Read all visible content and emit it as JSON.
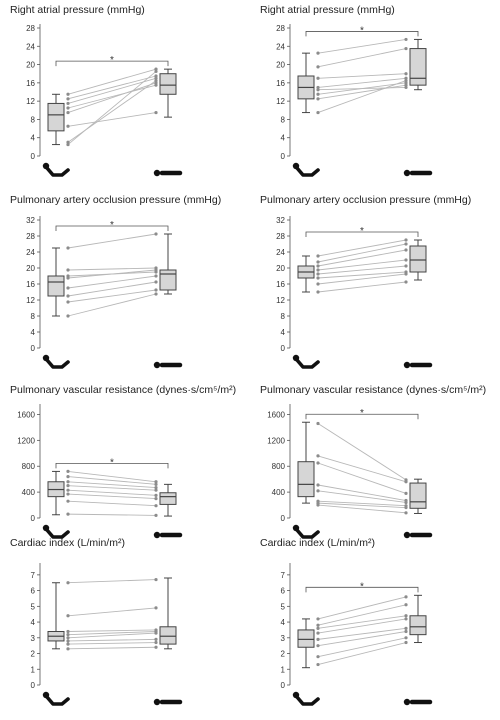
{
  "charts": [
    {
      "title": "Right atrial pressure (mmHg)",
      "y_ticks": [
        0,
        4,
        8,
        12,
        16,
        20,
        24,
        28
      ],
      "ylim": [
        0,
        28
      ],
      "significance": "*",
      "chart_data": {
        "type": "box",
        "categories": [
          "semi-recumbent",
          "supine"
        ],
        "box": [
          {
            "min": 2.5,
            "q1": 5.5,
            "median": 9,
            "q3": 11.5,
            "max": 13.5
          },
          {
            "min": 8.5,
            "q1": 13.5,
            "median": 15.5,
            "q3": 18,
            "max": 19
          }
        ],
        "paired": [
          [
            13.5,
            19
          ],
          [
            12.5,
            17.5
          ],
          [
            11.5,
            17
          ],
          [
            10.5,
            15.5
          ],
          [
            9.5,
            16
          ],
          [
            6.5,
            9.5
          ],
          [
            2.5,
            18.5
          ],
          [
            3,
            16.5
          ]
        ]
      }
    },
    {
      "title": "Right atrial pressure (mmHg)",
      "y_ticks": [
        0,
        4,
        8,
        12,
        16,
        20,
        24,
        28
      ],
      "ylim": [
        0,
        28
      ],
      "significance": "*",
      "chart_data": {
        "type": "box",
        "categories": [
          "semi-recumbent",
          "supine"
        ],
        "box": [
          {
            "min": 9.5,
            "q1": 12.5,
            "median": 15,
            "q3": 17.5,
            "max": 22.5
          },
          {
            "min": 14.5,
            "q1": 15.5,
            "median": 17,
            "q3": 23.5,
            "max": 25.5
          }
        ],
        "paired": [
          [
            22.5,
            25.5
          ],
          [
            19.5,
            23.5
          ],
          [
            17,
            18
          ],
          [
            15,
            17
          ],
          [
            14.5,
            15
          ],
          [
            13.5,
            16
          ],
          [
            12.5,
            15.5
          ],
          [
            9.5,
            16.5
          ]
        ]
      }
    },
    {
      "title": "Pulmonary artery occlusion pressure (mmHg)",
      "y_ticks": [
        0,
        4,
        8,
        12,
        16,
        20,
        24,
        28,
        32
      ],
      "ylim": [
        0,
        32
      ],
      "significance": "*",
      "chart_data": {
        "type": "box",
        "categories": [
          "semi-recumbent",
          "supine"
        ],
        "box": [
          {
            "min": 8,
            "q1": 13,
            "median": 16.5,
            "q3": 18,
            "max": 25
          },
          {
            "min": 13.5,
            "q1": 14.5,
            "median": 18.5,
            "q3": 19.5,
            "max": 28.5
          }
        ],
        "paired": [
          [
            25,
            28.5
          ],
          [
            19.5,
            20
          ],
          [
            18,
            19
          ],
          [
            17.5,
            19.5
          ],
          [
            15,
            18
          ],
          [
            13,
            16.5
          ],
          [
            11.5,
            14.5
          ],
          [
            8,
            13.5
          ]
        ]
      }
    },
    {
      "title": "Pulmonary artery occlusion pressure (mmHg)",
      "y_ticks": [
        0,
        4,
        8,
        12,
        16,
        20,
        24,
        28,
        32
      ],
      "ylim": [
        0,
        32
      ],
      "significance": "*",
      "chart_data": {
        "type": "box",
        "categories": [
          "semi-recumbent",
          "supine"
        ],
        "box": [
          {
            "min": 14,
            "q1": 17.5,
            "median": 19,
            "q3": 20.5,
            "max": 23
          },
          {
            "min": 17,
            "q1": 19,
            "median": 22,
            "q3": 25.5,
            "max": 27
          }
        ],
        "paired": [
          [
            23,
            27
          ],
          [
            21.5,
            26
          ],
          [
            20.5,
            24.5
          ],
          [
            19.5,
            22
          ],
          [
            18.5,
            20.5
          ],
          [
            17.5,
            19
          ],
          [
            16,
            18.5
          ],
          [
            14,
            16.5
          ]
        ]
      }
    },
    {
      "title": "Pulmonary vascular resistance (dynes·s/cm⁵/m²)",
      "y_ticks": [
        0,
        400,
        800,
        1200,
        1600
      ],
      "ylim": [
        0,
        1700
      ],
      "significance": "*",
      "chart_data": {
        "type": "box",
        "categories": [
          "semi-recumbent",
          "supine"
        ],
        "box": [
          {
            "min": 50,
            "q1": 330,
            "median": 440,
            "q3": 560,
            "max": 720
          },
          {
            "min": 30,
            "q1": 210,
            "median": 330,
            "q3": 390,
            "max": 520
          }
        ],
        "paired": [
          [
            720,
            560
          ],
          [
            640,
            520
          ],
          [
            560,
            470
          ],
          [
            500,
            430
          ],
          [
            430,
            350
          ],
          [
            370,
            300
          ],
          [
            260,
            190
          ],
          [
            60,
            40
          ]
        ]
      }
    },
    {
      "title": "Pulmonary vascular resistance (dynes·s/cm⁵/m²)",
      "y_ticks": [
        0,
        400,
        800,
        1200,
        1600
      ],
      "ylim": [
        0,
        1700
      ],
      "significance": "*",
      "chart_data": {
        "type": "box",
        "categories": [
          "semi-recumbent",
          "supine"
        ],
        "box": [
          {
            "min": 230,
            "q1": 330,
            "median": 520,
            "q3": 870,
            "max": 1480
          },
          {
            "min": 70,
            "q1": 150,
            "median": 250,
            "q3": 540,
            "max": 600
          }
        ],
        "paired": [
          [
            1460,
            590
          ],
          [
            960,
            560
          ],
          [
            850,
            380
          ],
          [
            510,
            270
          ],
          [
            420,
            240
          ],
          [
            260,
            190
          ],
          [
            230,
            160
          ],
          [
            200,
            80
          ]
        ]
      }
    },
    {
      "title": "Cardiac index (L/min/m²)",
      "y_ticks": [
        0,
        1,
        2,
        3,
        4,
        5,
        6,
        7
      ],
      "ylim": [
        0,
        7.5
      ],
      "significance": "",
      "chart_data": {
        "type": "box",
        "categories": [
          "semi-recumbent",
          "supine"
        ],
        "box": [
          {
            "min": 2.3,
            "q1": 2.8,
            "median": 3.1,
            "q3": 3.4,
            "max": 6.5
          },
          {
            "min": 2.3,
            "q1": 2.6,
            "median": 3.1,
            "q3": 3.7,
            "max": 6.8
          }
        ],
        "paired": [
          [
            6.5,
            6.7
          ],
          [
            4.4,
            4.9
          ],
          [
            3.4,
            3.5
          ],
          [
            3.2,
            3.4
          ],
          [
            3.0,
            3.3
          ],
          [
            2.8,
            2.9
          ],
          [
            2.6,
            2.7
          ],
          [
            2.3,
            2.4
          ]
        ]
      }
    },
    {
      "title": "Cardiac index (L/min/m²)",
      "y_ticks": [
        0,
        1,
        2,
        3,
        4,
        5,
        6,
        7
      ],
      "ylim": [
        0,
        7.5
      ],
      "significance": "*",
      "chart_data": {
        "type": "box",
        "categories": [
          "semi-recumbent",
          "supine"
        ],
        "box": [
          {
            "min": 1.1,
            "q1": 2.4,
            "median": 2.9,
            "q3": 3.5,
            "max": 4.2
          },
          {
            "min": 2.7,
            "q1": 3.2,
            "median": 3.7,
            "q3": 4.4,
            "max": 5.7
          }
        ],
        "paired": [
          [
            4.2,
            5.6
          ],
          [
            3.8,
            5.1
          ],
          [
            3.6,
            4.4
          ],
          [
            3.3,
            4.2
          ],
          [
            2.9,
            3.6
          ],
          [
            2.5,
            3.4
          ],
          [
            1.8,
            3.0
          ],
          [
            1.3,
            2.7
          ]
        ]
      }
    }
  ],
  "colors": {
    "box_fill": "#d6d6d6",
    "box_stroke": "#444444",
    "paired_line": "#b8b8b8",
    "paired_point": "#8c8c8c",
    "axis": "#555555",
    "icon": "#111111"
  },
  "icons": {
    "left": "semi-recumbent-patient-icon",
    "right": "supine-patient-icon"
  }
}
